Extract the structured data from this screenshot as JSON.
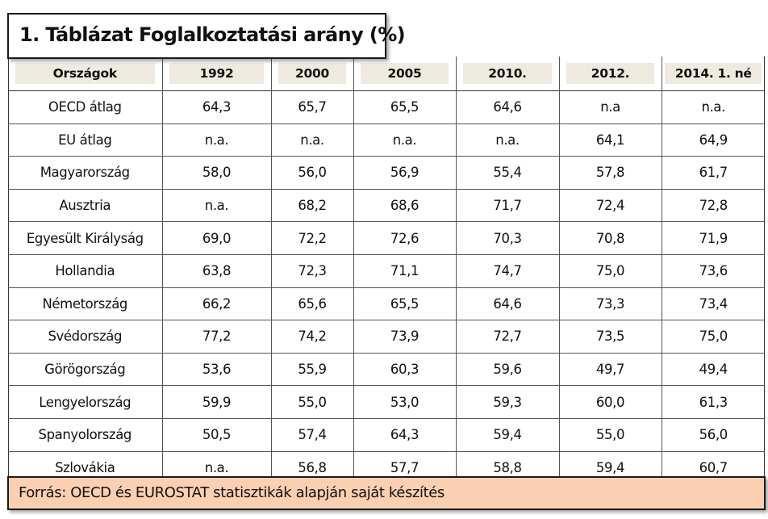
{
  "title": "1. Táblázat Foglalkoztatási arány (%)",
  "table": {
    "headers": [
      "Országok",
      "1992",
      "2000",
      "2005",
      "2010.",
      "2012.",
      "2014. 1. né"
    ],
    "rows": [
      [
        "OECD átlag",
        "64,3",
        "65,7",
        "65,5",
        "64,6",
        "n.a",
        "n.a."
      ],
      [
        "EU átlag",
        "n.a.",
        "n.a.",
        "n.a.",
        "n.a.",
        "64,1",
        "64,9"
      ],
      [
        "Magyarország",
        "58,0",
        "56,0",
        "56,9",
        "55,4",
        "57,8",
        "61,7"
      ],
      [
        "Ausztria",
        "n.a.",
        "68,2",
        "68,6",
        "71,7",
        "72,4",
        "72,8"
      ],
      [
        "Egyesült Királyság",
        "69,0",
        "72,2",
        "72,6",
        "70,3",
        "70,8",
        "71,9"
      ],
      [
        "Hollandia",
        "63,8",
        "72,3",
        "71,1",
        "74,7",
        "75,0",
        "73,6"
      ],
      [
        "Németország",
        "66,2",
        "65,6",
        "65,5",
        "64,6",
        "73,3",
        "73,4"
      ],
      [
        "Svédország",
        "77,2",
        "74,2",
        "73,9",
        "72,7",
        "73,5",
        "75,0"
      ],
      [
        "Görögország",
        "53,6",
        "55,9",
        "60,3",
        "59,6",
        "49,7",
        "49,4"
      ],
      [
        "Lengyelország",
        "59,9",
        "55,0",
        "53,0",
        "59,3",
        "60,0",
        "61,3"
      ],
      [
        "Spanyolország",
        "50,5",
        "57,4",
        "64,3",
        "59,4",
        "55,0",
        "56,0"
      ],
      [
        "Szlovákia",
        "n.a.",
        "56,8",
        "57,7",
        "58,8",
        "59,4",
        "60,7"
      ]
    ]
  },
  "source": "Forrás: OECD és EUROSTAT statisztikák alapján saját készítés",
  "colors": {
    "header_fill": "#eeeae0",
    "source_fill": "#fbd0b2",
    "border": "#1a1a1a"
  }
}
